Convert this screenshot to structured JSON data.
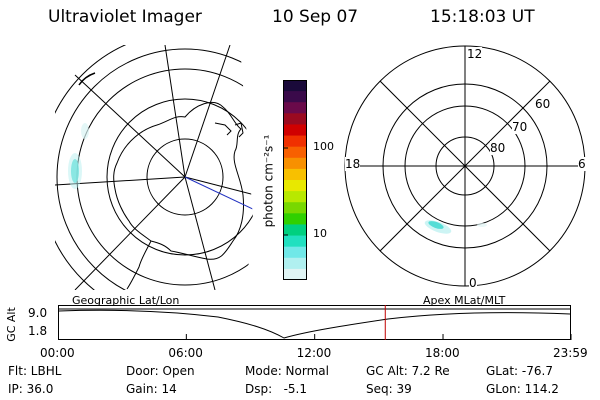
{
  "header": {
    "instrument": "Ultraviolet Imager",
    "date": "10 Sep 07",
    "time": "15:18:03 UT"
  },
  "colorbar": {
    "unit_label": "photon cm⁻²s⁻¹",
    "ticks": [
      "100",
      "10"
    ],
    "colors": [
      "#1a0a3a",
      "#3a0a4a",
      "#6a0a4a",
      "#9a0a20",
      "#d00000",
      "#f03000",
      "#f86000",
      "#f89000",
      "#f8c000",
      "#e8e800",
      "#b8e800",
      "#78d800",
      "#30d000",
      "#00d080",
      "#20e0c0",
      "#70e8e8",
      "#b0f0f0",
      "#e0f4f4"
    ]
  },
  "geo_map": {
    "label": "Geographic Lat/Lon"
  },
  "polar_plot": {
    "label": "Apex MLat/MLT",
    "mlt_labels": {
      "top": "12",
      "left": "18",
      "right": "6",
      "bottom": "0"
    },
    "lat_labels": [
      "60",
      "70",
      "80"
    ]
  },
  "timeline": {
    "ylabel": "GC Alt",
    "ytick_top": "9.0",
    "ytick_bottom": "1.8",
    "xticks": [
      "00:00",
      "06:00",
      "12:00",
      "18:00",
      "23:59"
    ],
    "cursor_time": "15:18",
    "marker_color": "#c00000"
  },
  "params": {
    "flt": "Flt: LBHL",
    "ip": "IP: 36.0",
    "door": "Door: Open",
    "gain": "Gain: 14",
    "mode": "Mode: Normal",
    "dsp": "Dsp:   -5.1",
    "gcalt": "GC Alt: 7.2 Re",
    "seq": "Seq: 39",
    "glat": "GLat: -76.7",
    "glon": "GLon: 114.2"
  }
}
